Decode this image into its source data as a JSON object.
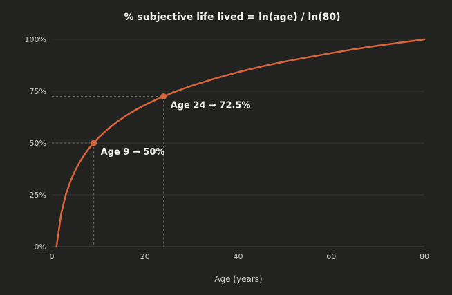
{
  "chart_data": {
    "type": "line",
    "title": "% subjective life lived = ln(age) / ln(80)",
    "xlabel": "Age (years)",
    "ylabel": "",
    "xlim": [
      0,
      80
    ],
    "ylim": [
      0,
      100
    ],
    "x_ticks": [
      0,
      20,
      40,
      60,
      80
    ],
    "y_ticks": [
      0,
      25,
      50,
      75,
      100
    ],
    "y_tick_labels": [
      "0%",
      "25%",
      "50%",
      "75%",
      "100%"
    ],
    "grid": true,
    "colors": {
      "line": "#d9653a",
      "background": "#222221"
    },
    "series": [
      {
        "x": [
          1,
          2,
          3,
          4,
          5,
          6,
          7,
          8,
          9,
          10,
          12,
          14,
          16,
          18,
          20,
          22,
          24,
          26,
          28,
          30,
          35,
          40,
          45,
          50,
          55,
          60,
          65,
          70,
          75,
          80
        ],
        "values": [
          0,
          15.8,
          25.1,
          31.6,
          36.7,
          40.9,
          44.4,
          47.5,
          50.1,
          52.5,
          56.7,
          60.2,
          63.3,
          66.0,
          68.4,
          70.5,
          72.5,
          74.4,
          76.0,
          77.6,
          81.1,
          84.2,
          86.9,
          89.3,
          91.4,
          93.4,
          95.3,
          97.0,
          98.5,
          100
        ]
      }
    ],
    "annotations": [
      {
        "x": 9,
        "y": 50,
        "label": "Age 9 → 50%"
      },
      {
        "x": 24,
        "y": 72.5,
        "label": "Age 24 → 72.5%"
      }
    ]
  }
}
